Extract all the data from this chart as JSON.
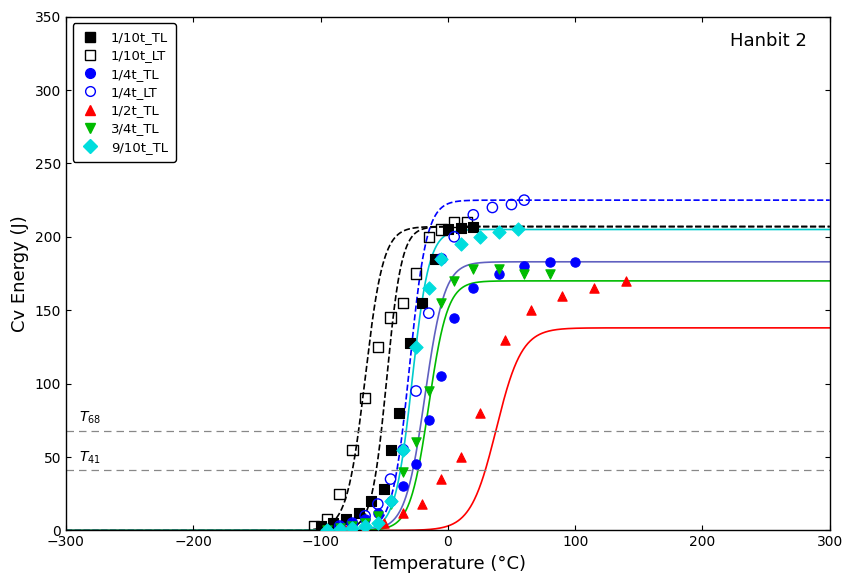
{
  "title": "Hanbit 2",
  "xlabel": "Temperature (°C)",
  "ylabel": "Cv Energy (J)",
  "xlim": [
    -300,
    300
  ],
  "ylim": [
    0,
    350
  ],
  "xticks": [
    -300,
    -200,
    -100,
    0,
    100,
    200,
    300
  ],
  "yticks": [
    0,
    50,
    100,
    150,
    200,
    250,
    300,
    350
  ],
  "T68": 68,
  "T41": 41,
  "background_color": "#ffffff",
  "series": [
    {
      "label": "1/10t_TL",
      "marker": "s",
      "filled": true,
      "color": "#000000",
      "line_color": "#000000",
      "line_style": "--",
      "upper_shelf": 207,
      "T50": -48,
      "slope": 0.085,
      "data_x": [
        -100,
        -90,
        -80,
        -70,
        -60,
        -50,
        -45,
        -38,
        -30,
        -20,
        -10,
        0,
        10,
        20
      ],
      "data_y": [
        3,
        5,
        8,
        12,
        20,
        28,
        55,
        80,
        128,
        155,
        185,
        205,
        206,
        207
      ]
    },
    {
      "label": "1/10t_LT",
      "marker": "s",
      "filled": false,
      "color": "#000000",
      "line_color": "#000000",
      "line_style": "--",
      "upper_shelf": 207,
      "T50": -65,
      "slope": 0.07,
      "data_x": [
        -105,
        -95,
        -85,
        -75,
        -65,
        -55,
        -45,
        -35,
        -25,
        -15,
        -5,
        5,
        15
      ],
      "data_y": [
        3,
        8,
        25,
        55,
        90,
        125,
        145,
        155,
        175,
        200,
        205,
        210,
        210
      ]
    },
    {
      "label": "1/4t_TL",
      "marker": "o",
      "filled": true,
      "color": "#0000ff",
      "line_color": "#6060c0",
      "line_style": "-",
      "upper_shelf": 183,
      "T50": -18,
      "slope": 0.065,
      "data_x": [
        -85,
        -75,
        -65,
        -55,
        -45,
        -35,
        -25,
        -15,
        -5,
        5,
        20,
        40,
        60,
        80,
        100
      ],
      "data_y": [
        3,
        5,
        8,
        12,
        20,
        30,
        45,
        75,
        105,
        145,
        165,
        175,
        180,
        183,
        183
      ]
    },
    {
      "label": "1/4t_LT",
      "marker": "o",
      "filled": false,
      "color": "#0000ff",
      "line_color": "#0000ff",
      "line_style": "--",
      "upper_shelf": 225,
      "T50": -30,
      "slope": 0.075,
      "data_x": [
        -85,
        -75,
        -65,
        -55,
        -45,
        -35,
        -25,
        -15,
        -5,
        5,
        20,
        35,
        50,
        60
      ],
      "data_y": [
        3,
        5,
        10,
        18,
        35,
        55,
        95,
        148,
        185,
        200,
        215,
        220,
        222,
        225
      ]
    },
    {
      "label": "1/2t_TL",
      "marker": "^",
      "filled": true,
      "color": "#ff0000",
      "line_color": "#ff0000",
      "line_style": "-",
      "upper_shelf": 138,
      "T50": 38,
      "slope": 0.05,
      "data_x": [
        -95,
        -80,
        -65,
        -50,
        -35,
        -20,
        -5,
        10,
        25,
        45,
        65,
        90,
        115,
        140
      ],
      "data_y": [
        0,
        0,
        2,
        5,
        12,
        18,
        35,
        50,
        80,
        130,
        150,
        160,
        165,
        170
      ]
    },
    {
      "label": "3/4t_TL",
      "marker": "v",
      "filled": true,
      "color": "#00bb00",
      "line_color": "#00bb00",
      "line_style": "-",
      "upper_shelf": 170,
      "T50": -15,
      "slope": 0.068,
      "data_x": [
        -95,
        -85,
        -75,
        -65,
        -55,
        -45,
        -35,
        -25,
        -15,
        -5,
        5,
        20,
        40,
        60,
        80
      ],
      "data_y": [
        0,
        2,
        3,
        5,
        10,
        18,
        40,
        60,
        95,
        155,
        170,
        178,
        178,
        175,
        175
      ]
    },
    {
      "label": "9/10t_TL",
      "marker": "D",
      "filled": true,
      "color": "#00dddd",
      "line_color": "#00cccc",
      "line_style": "-",
      "upper_shelf": 205,
      "T50": -28,
      "slope": 0.075,
      "data_x": [
        -95,
        -85,
        -75,
        -65,
        -55,
        -45,
        -35,
        -25,
        -15,
        -5,
        10,
        25,
        40,
        55
      ],
      "data_y": [
        0,
        1,
        2,
        3,
        5,
        20,
        55,
        125,
        165,
        185,
        195,
        200,
        203,
        205
      ]
    }
  ]
}
